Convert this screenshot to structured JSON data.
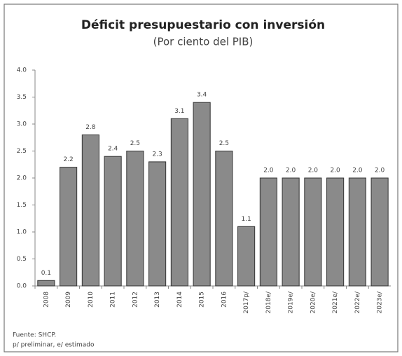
{
  "chart_data": {
    "type": "bar",
    "title": "Déficit presupuestario con inversión",
    "subtitle": "(Por ciento del PIB)",
    "categories": [
      "2008",
      "2009",
      "2010",
      "2011",
      "2012",
      "2013",
      "2014",
      "2015",
      "2016",
      "2017p/",
      "2018e/",
      "2019e/",
      "2020e/",
      "2021e/",
      "2022e/",
      "2023e/"
    ],
    "values": [
      0.1,
      2.2,
      2.8,
      2.4,
      2.5,
      2.3,
      3.1,
      3.4,
      2.5,
      1.1,
      2.0,
      2.0,
      2.0,
      2.0,
      2.0,
      2.0
    ],
    "value_labels": [
      "0.1",
      "2.2",
      "2.8",
      "2.4",
      "2.5",
      "2.3",
      "3.1",
      "3.4",
      "2.5",
      "1.1",
      "2.0",
      "2.0",
      "2.0",
      "2.0",
      "2.0",
      "2.0"
    ],
    "color": "#8a8a8a",
    "ylim": [
      0,
      4
    ],
    "yticks": [
      {
        "value": 0,
        "label": "0.0"
      },
      {
        "value": 0.5,
        "label": "0.5"
      },
      {
        "value": 1,
        "label": "1.0"
      },
      {
        "value": 1.5,
        "label": "1.5"
      },
      {
        "value": 2,
        "label": "2.0"
      },
      {
        "value": 2.5,
        "label": "2.5"
      },
      {
        "value": 3,
        "label": "3.0"
      },
      {
        "value": 3.5,
        "label": "3.5"
      },
      {
        "value": 4,
        "label": "4.0"
      }
    ],
    "grid": false,
    "notes": [
      "Fuente: SHCP.",
      "p/ preliminar, e/ estimado"
    ]
  }
}
